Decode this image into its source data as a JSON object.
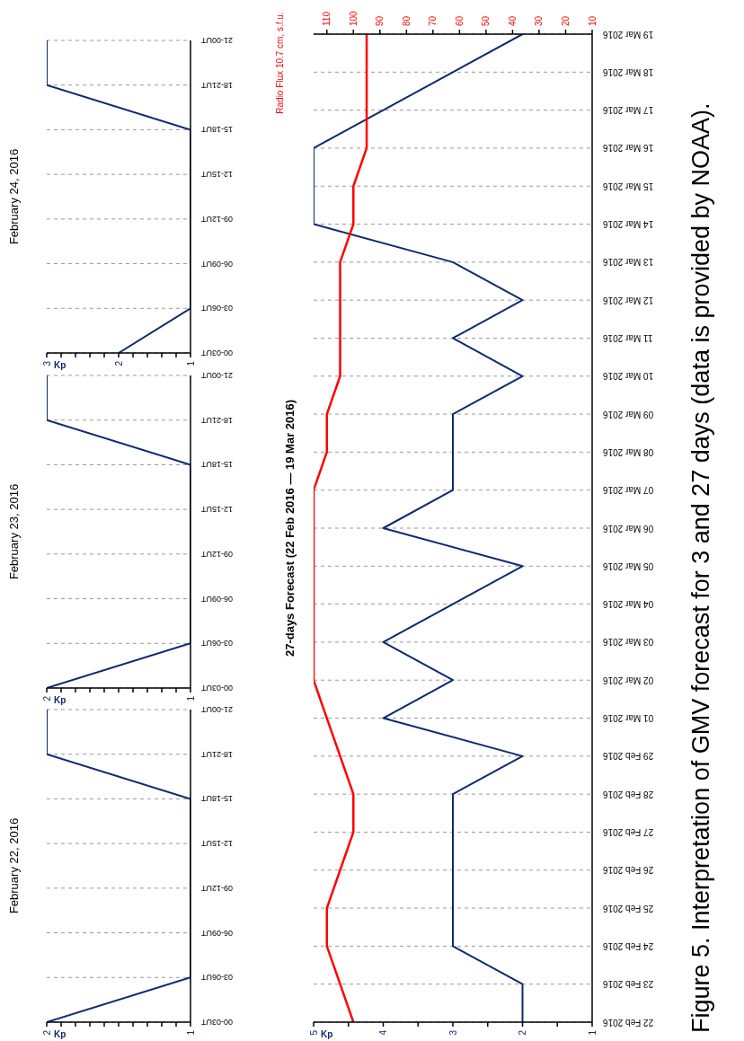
{
  "chart_data": [
    {
      "type": "line",
      "orientation": "horizontal",
      "title": "February 22, 2016",
      "xlabel": "Kp",
      "categories": [
        "21-00UT",
        "18-21UT",
        "15-18UT",
        "12-15UT",
        "09-12UT",
        "06-09UT",
        "03-06UT",
        "00-03UT"
      ],
      "values": [
        2,
        2,
        1,
        1,
        1,
        1,
        1,
        2
      ],
      "color": "#0b2a6f",
      "xlim": [
        2,
        1
      ],
      "xticks": [
        2,
        {
          "value": 1.9,
          "label": null
        },
        {
          "value": 1.8,
          "label": null
        },
        {
          "value": 1.7,
          "label": null
        },
        {
          "value": 1.6,
          "label": null
        },
        {
          "value": 1.5,
          "label": null
        },
        {
          "value": 1.4,
          "label": null
        },
        {
          "value": 1.3,
          "label": null
        },
        {
          "value": 1.2,
          "label": null
        },
        {
          "value": 1.1,
          "label": null
        },
        1
      ],
      "grid": "y"
    },
    {
      "type": "line",
      "orientation": "horizontal",
      "title": "February 23, 2016",
      "xlabel": "Kp",
      "categories": [
        "21-00UT",
        "18-21UT",
        "15-18UT",
        "12-15UT",
        "09-12UT",
        "06-09UT",
        "03-06UT",
        "00-03UT"
      ],
      "values": [
        2,
        2,
        1,
        1,
        1,
        1,
        1,
        2
      ],
      "color": "#0b2a6f",
      "xlim": [
        2,
        1
      ],
      "xticks": [
        2,
        {
          "value": 1.9,
          "label": null
        },
        {
          "value": 1.8,
          "label": null
        },
        {
          "value": 1.7,
          "label": null
        },
        {
          "value": 1.6,
          "label": null
        },
        {
          "value": 1.5,
          "label": null
        },
        {
          "value": 1.4,
          "label": null
        },
        {
          "value": 1.3,
          "label": null
        },
        {
          "value": 1.2,
          "label": null
        },
        {
          "value": 1.1,
          "label": null
        },
        1
      ],
      "grid": "y"
    },
    {
      "type": "line",
      "orientation": "horizontal",
      "title": "February 24, 2016",
      "xlabel": "Kp",
      "categories": [
        "21-00UT",
        "18-21UT",
        "15-18UT",
        "12-15UT",
        "09-12UT",
        "06-09UT",
        "03-06UT",
        "00-03UT"
      ],
      "values": [
        3,
        3,
        1,
        1,
        1,
        1,
        1,
        2
      ],
      "color": "#0b2a6f",
      "xlim": [
        3,
        1
      ],
      "xticks": [
        3,
        {
          "value": 2.8,
          "label": null
        },
        {
          "value": 2.6,
          "label": null
        },
        {
          "value": 2.4,
          "label": null
        },
        {
          "value": 2.2,
          "label": null
        },
        2,
        {
          "value": 1.8,
          "label": null
        },
        {
          "value": 1.6,
          "label": null
        },
        {
          "value": 1.4,
          "label": null
        },
        {
          "value": 1.2,
          "label": null
        },
        1
      ],
      "grid": "y"
    },
    {
      "type": "line",
      "orientation": "horizontal",
      "title": "27-days Forecast (22 Feb 2016 — 19 Mar 2016)",
      "xlabel": "Kp",
      "x2label": "Radio Flux 10.7 cm, s.f.u.",
      "categories": [
        "19 Mar 2016",
        "18 Mar 2016",
        "17 Mar 2016",
        "16 Mar 2016",
        "15 Mar 2016",
        "14 Mar 2016",
        "13 Mar 2016",
        "12 Mar 2016",
        "11 Mar 2016",
        "10 Mar 2016",
        "09 Mar 2016",
        "08 Mar 2016",
        "07 Mar 2016",
        "06 Mar 2016",
        "05 Mar 2016",
        "04 Mar 2016",
        "03 Mar 2016",
        "02 Mar 2016",
        "01 Mar 2016",
        "29 Feb 2016",
        "28 Feb 2016",
        "27 Feb 2016",
        "26 Feb 2016",
        "25 Feb 2016",
        "24 Feb 2016",
        "23 Feb 2016",
        "22 Feb 2016"
      ],
      "series": [
        {
          "color": "#0b2a6f",
          "values": [
            2,
            3,
            4,
            5,
            5,
            5,
            3,
            2,
            3,
            2,
            3,
            3,
            3,
            4,
            2,
            3,
            4,
            3,
            4,
            2,
            3,
            3,
            3,
            3,
            3,
            2,
            2
          ]
        },
        {
          "color": "#ff0000",
          "axis": "x2",
          "values": [
            95,
            95,
            95,
            95,
            100,
            100,
            105,
            105,
            105,
            105,
            110,
            110,
            115,
            115,
            115,
            115,
            115,
            115,
            110,
            105,
            100,
            100,
            105,
            110,
            110,
            105,
            100
          ]
        }
      ],
      "xlim": [
        5,
        1
      ],
      "xticks": [
        5,
        {
          "value": 4.5,
          "label": null
        },
        4,
        {
          "value": 3.5,
          "label": null
        },
        3,
        {
          "value": 2.5,
          "label": null
        },
        2,
        {
          "value": 1.5,
          "label": null
        },
        1
      ],
      "x2lim": [
        115,
        10
      ],
      "x2ticks": [
        110,
        100,
        90,
        80,
        70,
        60,
        50,
        40,
        30,
        20,
        10
      ],
      "grid": "y",
      "annotations": [
        "Figure 5. Interpretation of GMV forecast for 3 and 27 days (data is provided by NOAA)."
      ]
    }
  ]
}
